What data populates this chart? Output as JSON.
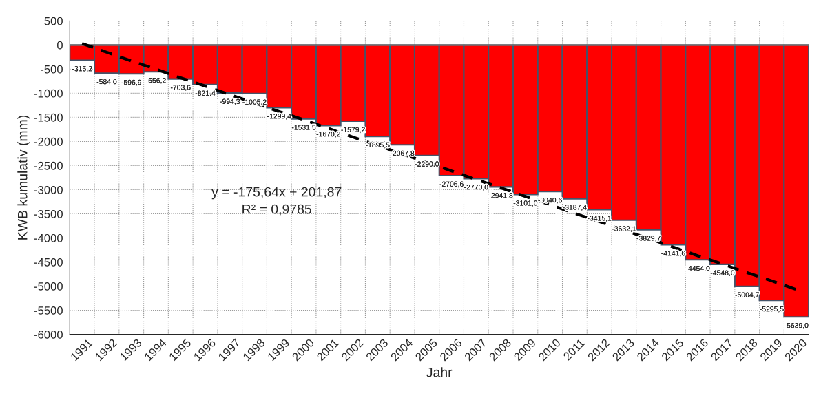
{
  "chart_data": {
    "type": "bar",
    "xlabel": "Jahr",
    "ylabel": "KWB kumulativ (mm)",
    "categories": [
      "1991",
      "1992",
      "1993",
      "1994",
      "1995",
      "1996",
      "1997",
      "1998",
      "1999",
      "2000",
      "2001",
      "2002",
      "2003",
      "2004",
      "2005",
      "2006",
      "2007",
      "2008",
      "2009",
      "2010",
      "2011",
      "2012",
      "2013",
      "2014",
      "2015",
      "2016",
      "2017",
      "2018",
      "2019",
      "2020"
    ],
    "series": [
      {
        "color": "#ff0000",
        "values": [
          -315.2,
          -584.0,
          -596.9,
          -556.2,
          -703.6,
          -821.4,
          -994.3,
          -1005.2,
          -1299.4,
          -1531.5,
          -1670.2,
          -1579.2,
          -1895.5,
          -2067.8,
          -2290.0,
          -2706.6,
          -2770.0,
          -2941.8,
          -3101.0,
          -3040.6,
          -3187.4,
          -3415.1,
          -3632.1,
          -3829.7,
          -4141.6,
          -4454.0,
          -4548.0,
          -5004.7,
          -5295.5,
          -5639.0
        ],
        "value_labels": [
          "-315,2",
          "-584,0",
          "-596,9",
          "-556,2",
          "-703,6",
          "-821,4",
          "-994,3",
          "-1005,2",
          "-1299,4",
          "-1531,5",
          "-1670,2",
          "-1579,2",
          "-1895,5",
          "-2067,8",
          "-2290,0",
          "-2706,6",
          "-2770,0",
          "-2941,8",
          "-3101,0",
          "-3040,6",
          "-3187,4",
          "-3415,1",
          "-3632,1",
          "-3829,7",
          "-4141,6",
          "-4454,0",
          "-4548,0",
          "-5004,7",
          "-5295,5",
          "-5639,0"
        ]
      },
      {
        "type": "line",
        "color": "#000000",
        "line_style": "dashed",
        "values": [
          30,
          -150,
          -330,
          -500,
          -680,
          -850,
          -1030,
          -1200,
          -1380,
          -1550,
          -1730,
          -1910,
          -2080,
          -2260,
          -2430,
          -2610,
          -2790,
          -2960,
          -3140,
          -3310,
          -3490,
          -3660,
          -3840,
          -4010,
          -4190,
          -4370,
          -4540,
          -4720,
          -4890,
          -5070
        ]
      }
    ],
    "annotations": [
      {
        "text": "y = -175,64x + 201,87"
      },
      {
        "text": "R² = 0,9785"
      }
    ],
    "ylim": [
      -6000,
      500
    ],
    "yticks": [
      -6000,
      -5500,
      -5000,
      -4500,
      -4000,
      -3500,
      -3000,
      -2500,
      -2000,
      -1500,
      -1000,
      -500,
      0,
      500
    ],
    "grid": true
  }
}
